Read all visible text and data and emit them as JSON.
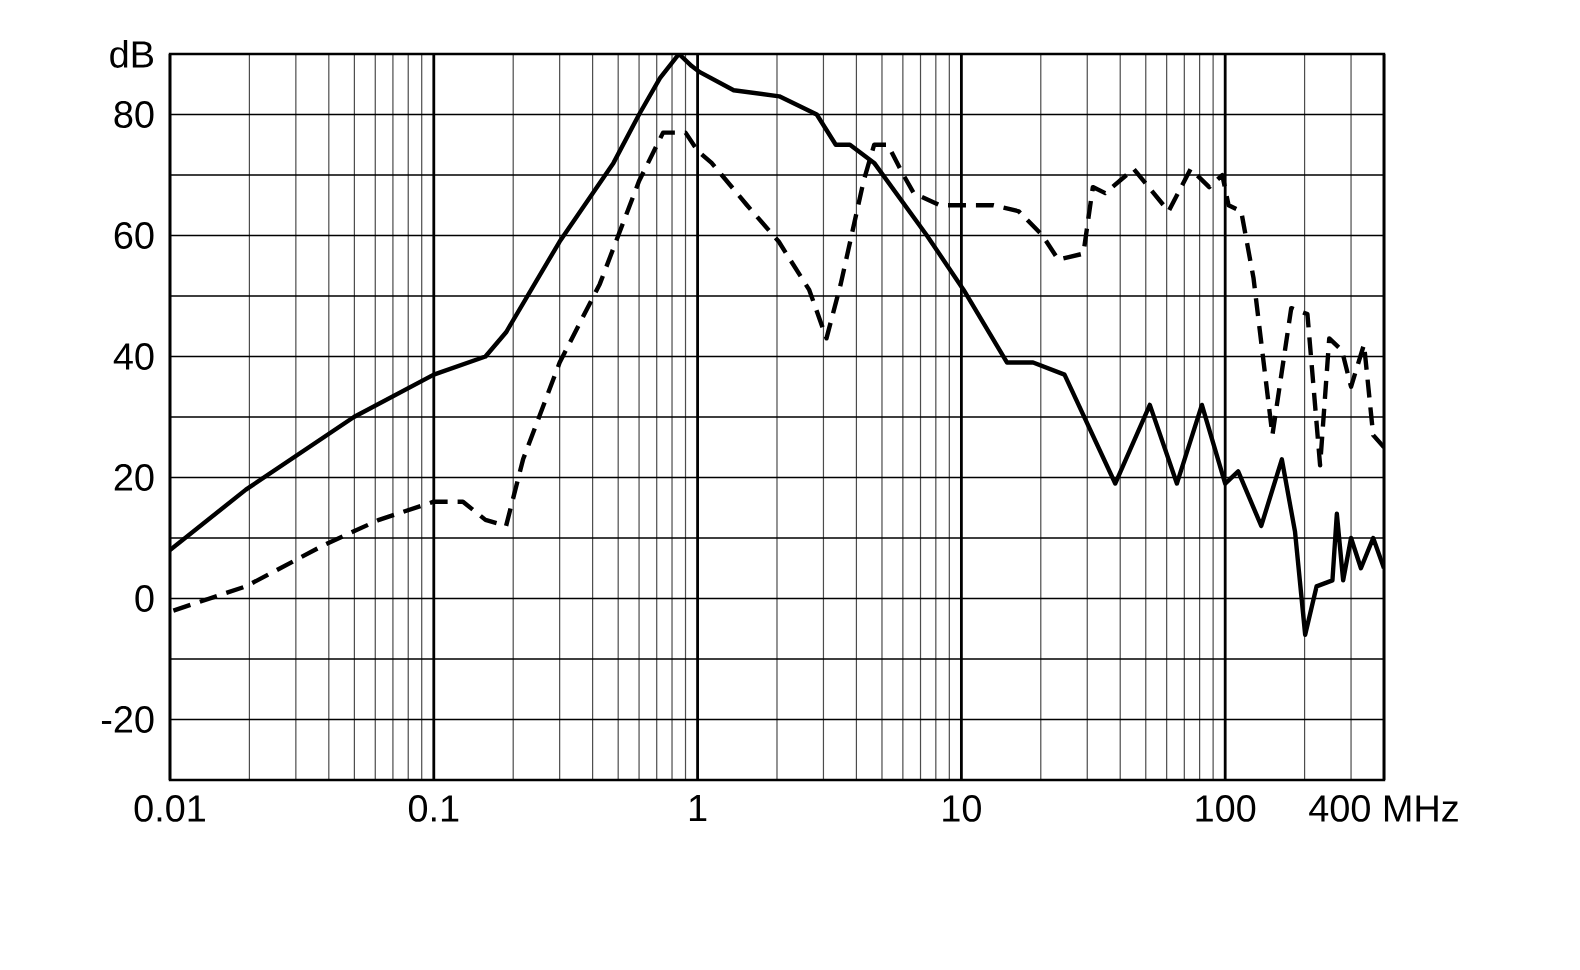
{
  "chart_data": {
    "type": "line",
    "log": "x",
    "grid": true,
    "xlim": [
      0.01,
      400
    ],
    "ylim": [
      -30,
      90
    ],
    "xticks": [
      0.01,
      0.1,
      1,
      10,
      100,
      {
        "value": 400,
        "label": "400 MHz"
      }
    ],
    "yticks": [
      {
        "value": -30,
        "label": null
      },
      -20,
      {
        "value": -10,
        "label": null
      },
      0,
      {
        "value": 10,
        "label": null
      },
      20,
      {
        "value": 30,
        "label": null
      },
      40,
      {
        "value": 50,
        "label": null
      },
      60,
      {
        "value": 70,
        "label": null
      },
      80,
      {
        "value": 90,
        "label": "dB"
      }
    ],
    "series": [
      {
        "color": "#000000",
        "line_style": "solid",
        "x": [
          0.01,
          0.0194,
          0.0498,
          0.1,
          0.157,
          0.188,
          0.3,
          0.48,
          0.6,
          0.72,
          0.85,
          0.95,
          1.02,
          1.37,
          2.04,
          2.83,
          3.34,
          3.78,
          4.67,
          7.4,
          10.2,
          14.9,
          18.7,
          24.6,
          38.3,
          51.8,
          65.6,
          81.6,
          100,
          112,
          137,
          164,
          184,
          201,
          222,
          255,
          265,
          280,
          300,
          327,
          364,
          400
        ],
        "values": [
          8,
          18,
          30,
          37,
          40,
          44,
          59,
          72,
          80,
          86,
          90,
          88,
          87,
          84,
          83,
          80,
          75,
          75,
          72,
          60,
          51,
          39,
          39,
          37,
          19,
          32,
          19,
          32,
          19,
          21,
          12,
          23,
          11,
          -6,
          2,
          3,
          14,
          3,
          10,
          5,
          10,
          5
        ]
      },
      {
        "color": "#000000",
        "line_style": "dashed",
        "x": [
          0.0103,
          0.0194,
          0.039,
          0.062,
          0.1,
          0.129,
          0.157,
          0.188,
          0.218,
          0.3,
          0.426,
          0.6,
          0.74,
          0.9,
          1.0,
          1.13,
          1.54,
          2.03,
          2.65,
          3.08,
          3.49,
          4.26,
          4.67,
          5.26,
          6.03,
          6.6,
          8.3,
          10.4,
          13.2,
          16.5,
          20.3,
          23.3,
          29,
          31.5,
          35.1,
          45,
          61,
          74,
          87,
          97.5,
          103,
          115,
          128,
          151,
          178,
          205,
          229,
          248,
          277,
          300,
          336,
          364,
          400
        ],
        "values": [
          -2,
          2,
          9,
          13,
          16,
          16,
          13,
          12,
          23,
          39,
          52,
          69,
          77,
          77,
          74,
          72,
          65,
          59,
          51,
          43,
          52,
          69,
          75,
          75,
          70,
          67,
          65,
          65,
          65,
          64,
          60,
          56,
          57,
          68,
          67,
          71,
          64,
          71,
          68,
          70,
          65,
          64,
          53,
          27,
          48,
          47,
          22,
          43,
          41,
          35,
          42,
          27,
          25
        ]
      }
    ]
  }
}
